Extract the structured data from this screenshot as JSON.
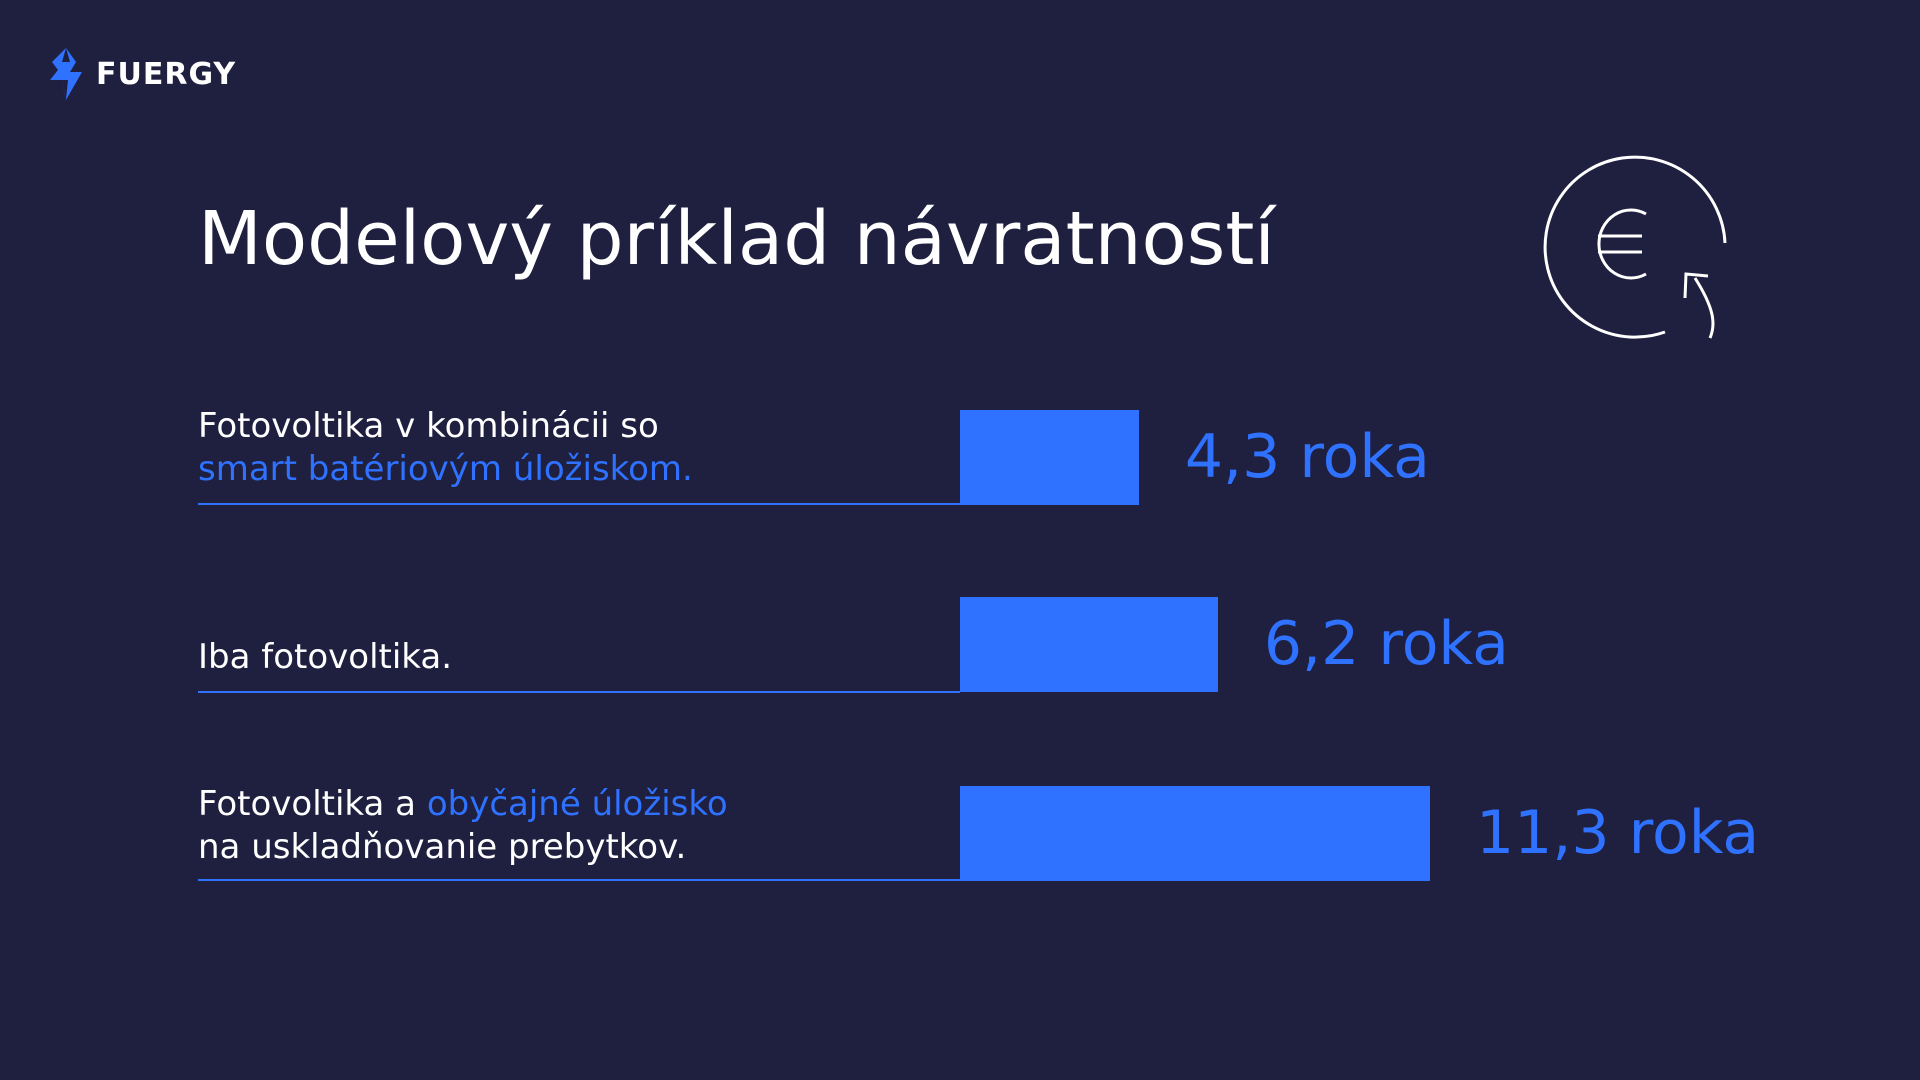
{
  "logo": {
    "text": "FUERGY"
  },
  "colors": {
    "background": "#1f1f40",
    "accent": "#2f72ff",
    "text": "#ffffff"
  },
  "icons": {
    "header": "euro-refresh-icon",
    "logo": "fuergy-bolt-icon"
  },
  "chart_data": {
    "type": "bar",
    "orientation": "horizontal",
    "title": "Modelový príklad návratností",
    "unit": "roka",
    "categories": [
      {
        "plain": "Fotovoltika v kombinácii so",
        "accent": "smart batériovým úložiskom.",
        "accent_position": "line2"
      },
      {
        "plain": "Iba fotovoltika.",
        "accent": "",
        "accent_position": "none"
      },
      {
        "plain_before": "Fotovoltika a ",
        "accent": "obyčajné úložisko",
        "plain_after": "na uskladňovanie prebytkov.",
        "accent_position": "line1-end"
      }
    ],
    "values": [
      4.3,
      6.2,
      11.3
    ],
    "value_labels": [
      "4,3 roka",
      "6,2 roka",
      "11,3 roka"
    ],
    "xlim": [
      0,
      11.3
    ],
    "grid": false,
    "legend": "none"
  }
}
